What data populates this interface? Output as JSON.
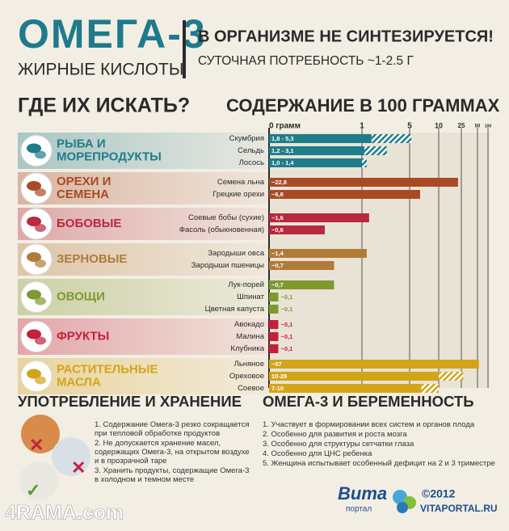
{
  "header": {
    "title": "ОМЕГА-3",
    "subtitle": "ЖИРНЫЕ КИСЛОТЫ",
    "headline": "В ОРГАНИЗМЕ НЕ СИНТЕЗИРУЕТСЯ!",
    "daily_need": "СУТОЧНАЯ ПОТРЕБНОСТЬ ~1-2.5 Г"
  },
  "chart_data": {
    "type": "range-bar",
    "left_title": "ГДЕ ИХ ИСКАТЬ?",
    "title": "СОДЕРЖАНИЕ В 100 ГРАММАХ",
    "xlim": [
      0,
      100
    ],
    "xticks": [
      {
        "value": 0,
        "label": "0 грамм"
      },
      1,
      5,
      10,
      25,
      50,
      100
    ],
    "groups": [
      {
        "name": [
          "РЫБА И",
          "МОРЕПРОДУКТЫ"
        ],
        "color": "#1e7d8a",
        "items": [
          {
            "name": "Скумбрия",
            "value_label": "1,8 - 5,3",
            "low": 1.8,
            "high": 5.3
          },
          {
            "name": "Сельдь",
            "value_label": "1,2 - 3,1",
            "low": 1.2,
            "high": 3.1
          },
          {
            "name": "Лосось",
            "value_label": "1,0 - 1,4",
            "low": 1.0,
            "high": 1.4
          }
        ]
      },
      {
        "name": [
          "ОРЕХИ И",
          "СЕМЕНА"
        ],
        "color": "#a84a24",
        "items": [
          {
            "name": "Семена льна",
            "value_label": "~22,8",
            "low": 22.8
          },
          {
            "name": "Грецкие орехи",
            "value_label": "~6,8",
            "low": 6.8
          }
        ]
      },
      {
        "name": [
          "БОБОВЫЕ"
        ],
        "color": "#b8283e",
        "items": [
          {
            "name": "Соевые бобы (сухие)",
            "value_label": "~1,6",
            "low": 1.6
          },
          {
            "name": "Фасоль (обыкновенная)",
            "value_label": "~0,6",
            "low": 0.6
          }
        ]
      },
      {
        "name": [
          "ЗЕРНОВЫЕ"
        ],
        "color": "#b07a38",
        "items": [
          {
            "name": "Зародыши овса",
            "value_label": "~1,4",
            "low": 1.4
          },
          {
            "name": "Зародыши пшеницы",
            "value_label": "~0,7",
            "low": 0.7
          }
        ]
      },
      {
        "name": [
          "ОВОЩИ"
        ],
        "color": "#7d9a2e",
        "items": [
          {
            "name": "Лук-порей",
            "value_label": "~0,7",
            "low": 0.7
          },
          {
            "name": "Шпинат",
            "value_label": "~0,1",
            "low": 0.1
          },
          {
            "name": "Цветная капуста",
            "value_label": "~0,1",
            "low": 0.1
          }
        ]
      },
      {
        "name": [
          "ФРУКТЫ"
        ],
        "color": "#c5203b",
        "items": [
          {
            "name": "Авокадо",
            "value_label": "~0,1",
            "low": 0.1
          },
          {
            "name": "Малина",
            "value_label": "~0,1",
            "low": 0.1
          },
          {
            "name": "Клубника",
            "value_label": "~0,1",
            "low": 0.1
          }
        ]
      },
      {
        "name": [
          "РАСТИТЕЛЬНЫЕ",
          "МАСЛА"
        ],
        "color": "#d4a418",
        "items": [
          {
            "name": "Льняное",
            "value_label": "~57",
            "low": 57
          },
          {
            "name": "Ореховое",
            "value_label": "10-28",
            "low": 10,
            "high": 28
          },
          {
            "name": "Соевое",
            "value_label": "7-10",
            "low": 7,
            "high": 10
          }
        ]
      }
    ]
  },
  "storage": {
    "title": "УПОТРЕБЛЕНИЕ И ХРАНЕНИЕ",
    "items": [
      "1. Содержание Омега-3 резко сокращается при тепловой обработке продуктов",
      "2. Не допускается хранение масел, содержащих Омега-3, на открытом воздухе и в прозрачной таре",
      "3. Хранить продукты, содержащие Омега-3 в холодном и темном месте"
    ]
  },
  "pregnancy": {
    "title": "ОМЕГА-3 И БЕРЕМЕННОСТЬ",
    "items": [
      "1. Участвует в формировании всех систем и органов плода",
      "2. Особенно для развития и роста мозга",
      "3. Особенно для структуры сетчатки глаза",
      "4. Особенно для ЦНС ребенка",
      "5. Женщина испытывает особенный дефицит на 2 и 3 триместре"
    ]
  },
  "footer": {
    "logo": "Вита",
    "logo_sub": "портал",
    "copyright": "©2012",
    "site": "VITAPORTAL.RU",
    "watermark": "4RAMA.com"
  }
}
